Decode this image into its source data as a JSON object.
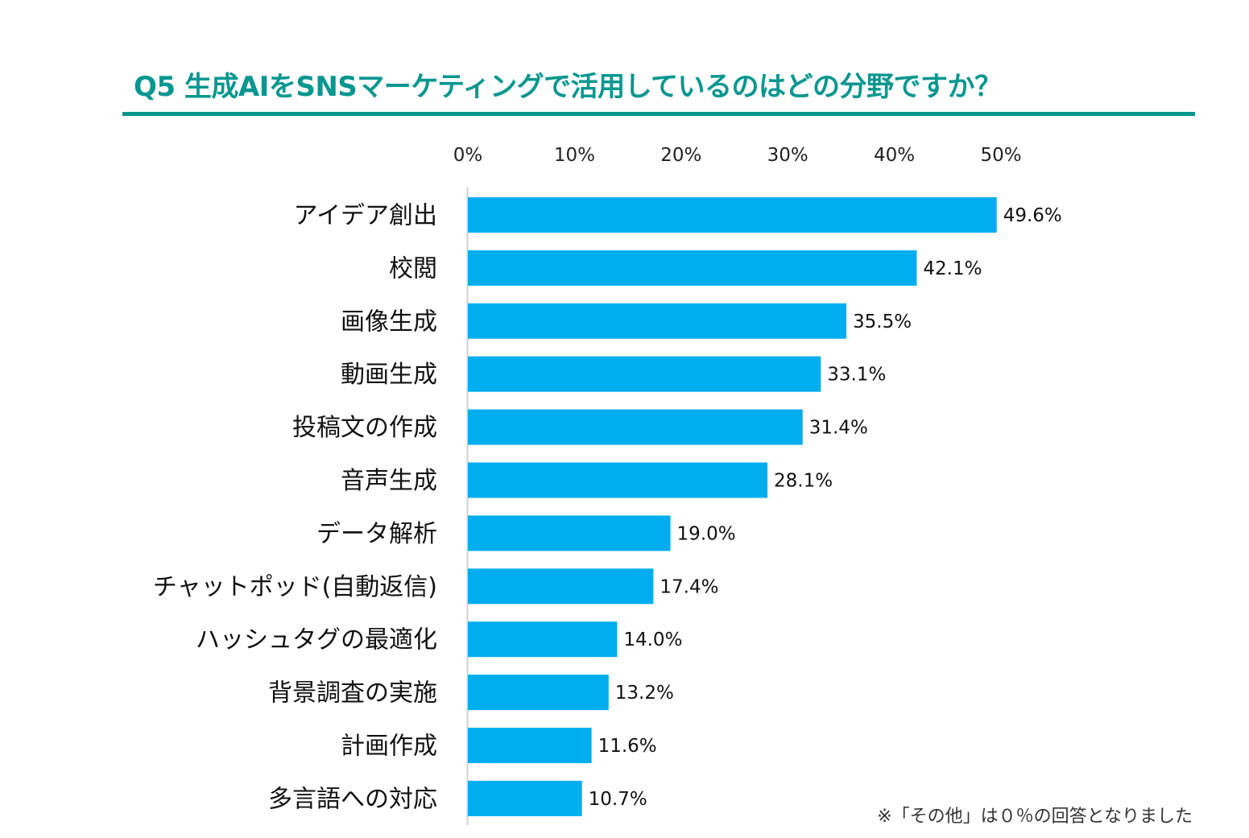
{
  "chart_data": {
    "type": "bar",
    "orientation": "horizontal",
    "title": "Q5 生成AIをSNSマーケティングで活用しているのはどの分野ですか？",
    "xlabel": "",
    "ylabel": "",
    "xlim": [
      0,
      50
    ],
    "ticks": [
      "0%",
      "10%",
      "20%",
      "30%",
      "40%",
      "50%"
    ],
    "tick_values": [
      0,
      10,
      20,
      30,
      40,
      50
    ],
    "grid": false,
    "bar_color": "#00AEEF",
    "categories": [
      "アイデア創出",
      "校閲",
      "画像生成",
      "動画生成",
      "投稿文の作成",
      "音声生成",
      "データ解析",
      "チャットポッド(自動返信)",
      "ハッシュタグの最適化",
      "背景調査の実施",
      "計画作成",
      "多言語への対応"
    ],
    "values": [
      49.6,
      42.1,
      35.5,
      33.1,
      31.4,
      28.1,
      19.0,
      17.4,
      14.0,
      13.2,
      11.6,
      10.7
    ],
    "value_labels": [
      "49.6%",
      "42.1%",
      "35.5%",
      "33.1%",
      "31.4%",
      "28.1%",
      "19.0%",
      "17.4%",
      "14.0%",
      "13.2%",
      "11.6%",
      "10.7%"
    ],
    "note": "※「その他」は０％の回答となりました"
  },
  "colors": {
    "title": "#079690",
    "bar": "#00AEEF",
    "axis": "#D0D0D0"
  }
}
